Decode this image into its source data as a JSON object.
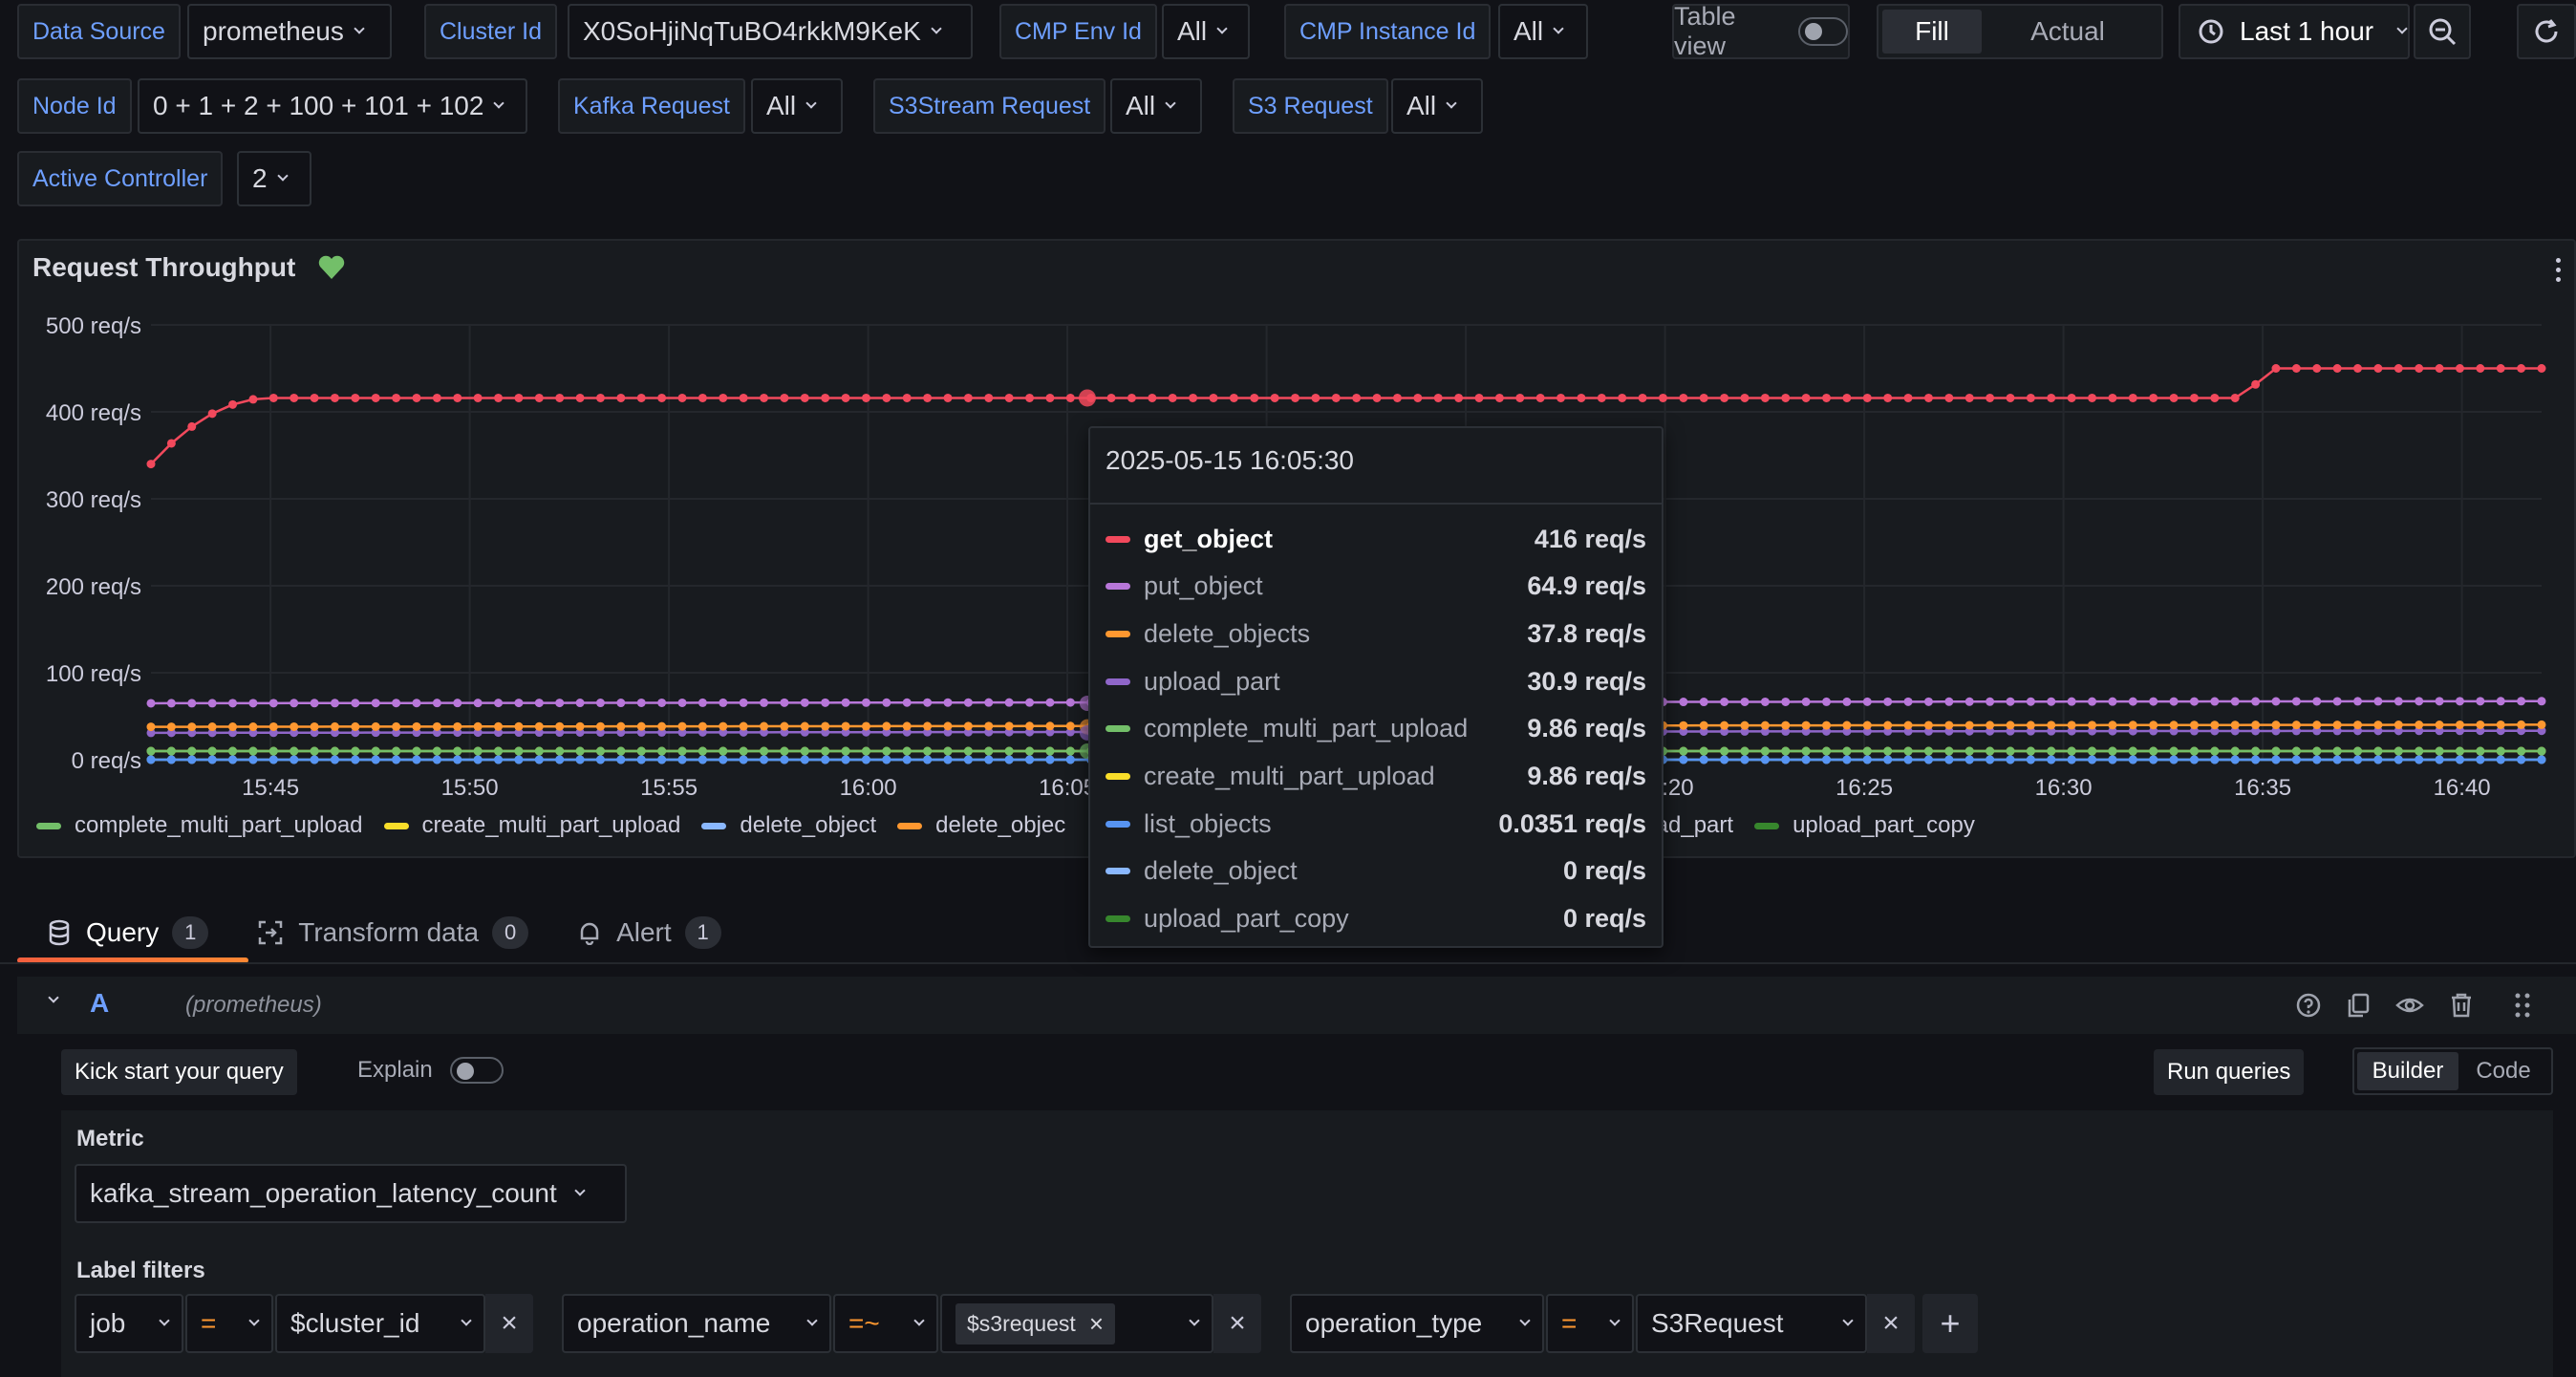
{
  "variables": {
    "data_source": {
      "label": "Data Source",
      "value": "prometheus"
    },
    "cluster_id": {
      "label": "Cluster Id",
      "value": "X0SoHjiNqTuBO4rkkM9KeK"
    },
    "cmp_env_id": {
      "label": "CMP Env Id",
      "value": "All"
    },
    "cmp_instance_id": {
      "label": "CMP Instance Id",
      "value": "All"
    },
    "node_id": {
      "label": "Node Id",
      "value": "0 + 1 + 2 + 100 + 101 + 102"
    },
    "kafka_request": {
      "label": "Kafka Request",
      "value": "All"
    },
    "s3stream_request": {
      "label": "S3Stream Request",
      "value": "All"
    },
    "s3_request": {
      "label": "S3 Request",
      "value": "All"
    },
    "active_controller": {
      "label": "Active Controller",
      "value": "2"
    }
  },
  "toolbar": {
    "table_view": "Table view",
    "fill": "Fill",
    "actual": "Actual",
    "time_range": "Last 1 hour"
  },
  "panel": {
    "title": "Request Throughput",
    "legend": [
      {
        "name": "complete_multi_part_upload",
        "color": "#73bf69"
      },
      {
        "name": "create_multi_part_upload",
        "color": "#fade2a"
      },
      {
        "name": "delete_object",
        "color": "#8ab8ff"
      },
      {
        "name": "delete_objec",
        "color": "#ff9830"
      },
      {
        "name": "upload_part",
        "color": "#a352cc"
      },
      {
        "name": "upload_part_copy",
        "color": "#37872d"
      }
    ]
  },
  "chart_data": {
    "type": "line",
    "ylabel": "",
    "y_ticks": [
      "0 req/s",
      "100 req/s",
      "200 req/s",
      "300 req/s",
      "400 req/s",
      "500 req/s"
    ],
    "ylim": [
      0,
      500
    ],
    "x_ticks": [
      "15:45",
      "15:50",
      "15:55",
      "16:00",
      "16:05",
      "16:10",
      "16:15",
      "16:20",
      "16:25",
      "16:30",
      "16:35",
      "16:40"
    ],
    "x_range": [
      "15:42",
      "16:42"
    ],
    "grid": true,
    "series": [
      {
        "name": "get_object",
        "color": "#f2495c",
        "values_desc": "starts ~340 at 15:42, rises to ~416 by 15:45, flat ~416 until 16:34, steps to ~450 after 16:35"
      },
      {
        "name": "put_object",
        "color": "#b877d9",
        "level": 64.9
      },
      {
        "name": "delete_objects",
        "color": "#ff9830",
        "level": 37.8
      },
      {
        "name": "upload_part",
        "color": "#8f66c9",
        "level": 30.9
      },
      {
        "name": "complete_multi_part_upload",
        "color": "#73bf69",
        "level": 9.86
      },
      {
        "name": "create_multi_part_upload",
        "color": "#fade2a",
        "level": 9.86
      },
      {
        "name": "list_objects",
        "color": "#5794f2",
        "level": 0.0351
      },
      {
        "name": "delete_object",
        "color": "#8ab8ff",
        "level": 0
      },
      {
        "name": "upload_part_copy",
        "color": "#37872d",
        "level": 0
      }
    ]
  },
  "tooltip": {
    "timestamp": "2025-05-15 16:05:30",
    "rows": [
      {
        "name": "get_object",
        "value": "416 req/s",
        "color": "#f2495c",
        "highlight": true
      },
      {
        "name": "put_object",
        "value": "64.9 req/s",
        "color": "#b877d9"
      },
      {
        "name": "delete_objects",
        "value": "37.8 req/s",
        "color": "#ff9830"
      },
      {
        "name": "upload_part",
        "value": "30.9 req/s",
        "color": "#8f66c9"
      },
      {
        "name": "complete_multi_part_upload",
        "value": "9.86 req/s",
        "color": "#73bf69"
      },
      {
        "name": "create_multi_part_upload",
        "value": "9.86 req/s",
        "color": "#fade2a"
      },
      {
        "name": "list_objects",
        "value": "0.0351 req/s",
        "color": "#5794f2"
      },
      {
        "name": "delete_object",
        "value": "0 req/s",
        "color": "#8ab8ff"
      },
      {
        "name": "upload_part_copy",
        "value": "0 req/s",
        "color": "#37872d"
      }
    ]
  },
  "tabs": [
    {
      "label": "Query",
      "count": "1"
    },
    {
      "label": "Transform data",
      "count": "0"
    },
    {
      "label": "Alert",
      "count": "1"
    }
  ],
  "query": {
    "ref": "A",
    "datasource": "(prometheus)",
    "kick_start": "Kick start your query",
    "explain": "Explain",
    "run_queries": "Run queries",
    "builder": "Builder",
    "code": "Code",
    "metric_label": "Metric",
    "metric_value": "kafka_stream_operation_latency_count",
    "label_filters": "Label filters",
    "filters": [
      {
        "label": "job",
        "op": "=",
        "value": "$cluster_id"
      },
      {
        "label": "operation_name",
        "op": "=~",
        "value": "$s3request"
      },
      {
        "label": "operation_type",
        "op": "=",
        "value": "S3Request"
      }
    ]
  }
}
